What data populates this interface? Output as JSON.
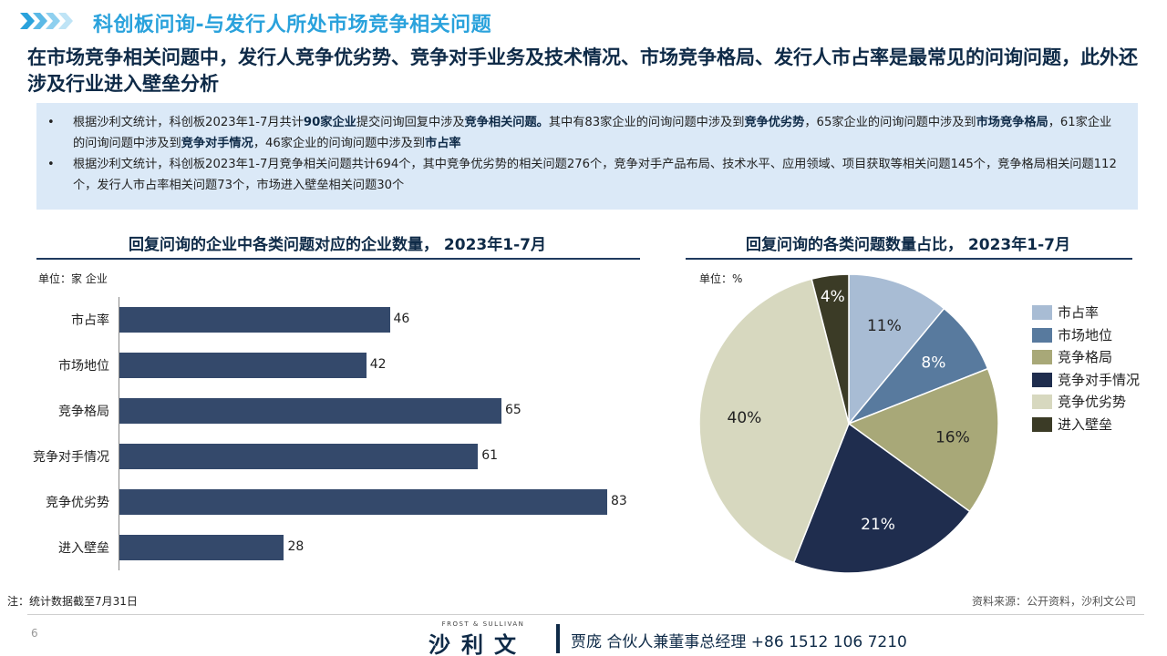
{
  "header": {
    "title": "科创板问询-与发行人所处市场竞争相关问题",
    "headline": "在市场竞争相关问题中，发行人竞争优劣势、竞争对手业务及技术情况、市场竞争格局、发行人市占率是最常见的问询问题，此外还涉及行业进入壁垒分析",
    "accent_color": "#2aa2dc"
  },
  "info": {
    "bullets": [
      {
        "parts": [
          {
            "text": "根据沙利文统计，科创板2023年1-7月共计",
            "bold": false
          },
          {
            "text": "90家企业",
            "bold": true
          },
          {
            "text": "提交问询回复中涉及",
            "bold": false
          },
          {
            "text": "竞争相关问题。",
            "bold": true
          },
          {
            "text": "其中有83家企业的问询问题中涉及到",
            "bold": false
          },
          {
            "text": "竞争优劣势",
            "bold": true
          },
          {
            "text": "，65家企业的问询问题中涉及到",
            "bold": false
          },
          {
            "text": "市场竞争格局",
            "bold": true
          },
          {
            "text": "，61家企业的问询问题中涉及到",
            "bold": false
          },
          {
            "text": "竞争对手情况",
            "bold": true
          },
          {
            "text": "，46家企业的问询问题中涉及到",
            "bold": false
          },
          {
            "text": "市占率",
            "bold": true
          }
        ]
      },
      {
        "parts": [
          {
            "text": "根据沙利文统计，科创板2023年1-7月竞争相关问题共计694个，其中竞争优劣势的相关问题276个，竞争对手产品布局、技术水平、应用领域、项目获取等相关问题145个，竞争格局相关问题112个，发行人市占率相关问题73个，市场进入壁垒相关问题30个",
            "bold": false
          }
        ]
      }
    ]
  },
  "left_panel": {
    "title": "回复问询的企业中各类问题对应的企业数量， 2023年1-7月",
    "unit": "单位：家 企业"
  },
  "right_panel": {
    "title": "回复问询的各类问题数量占比， 2023年1-7月",
    "unit": "单位：%"
  },
  "chart_data": [
    {
      "type": "bar",
      "orientation": "horizontal",
      "title": "回复问询的企业中各类问题对应的企业数量， 2023年1-7月",
      "unit": "单位：家 企业",
      "categories": [
        "市占率",
        "市场地位",
        "竞争格局",
        "竞争对手情况",
        "竞争优劣势",
        "进入壁垒"
      ],
      "values": [
        46,
        42,
        65,
        61,
        83,
        28
      ],
      "xlim": [
        0,
        83
      ],
      "bar_color": "#34496b",
      "grid": false
    },
    {
      "type": "pie",
      "title": "回复问询的各类问题数量占比， 2023年1-7月",
      "unit": "单位：%",
      "categories": [
        "市占率",
        "市场地位",
        "竞争格局",
        "竞争对手情况",
        "竞争优劣势",
        "进入壁垒"
      ],
      "values": [
        11,
        8,
        16,
        21,
        40,
        4
      ],
      "labels": [
        "11%",
        "8%",
        "16%",
        "21%",
        "40%",
        "4%"
      ],
      "colors": [
        "#a8bcd4",
        "#587a9e",
        "#a8a878",
        "#1f2d4e",
        "#d7d8bf",
        "#3b3b26"
      ],
      "label_colors": [
        "#222222",
        "#ffffff",
        "#222222",
        "#ffffff",
        "#222222",
        "#ffffff"
      ],
      "legend_position": "right"
    }
  ],
  "footer": {
    "note": "注：统计数据截至7月31日",
    "source": "资料来源：公开资料，沙利文公司",
    "page_number": "6",
    "brand_small": "FROST & SULLIVAN",
    "brand": "沙利文",
    "contact": "贾庞  合伙人兼董事总经理  +86 1512 106 7210"
  }
}
